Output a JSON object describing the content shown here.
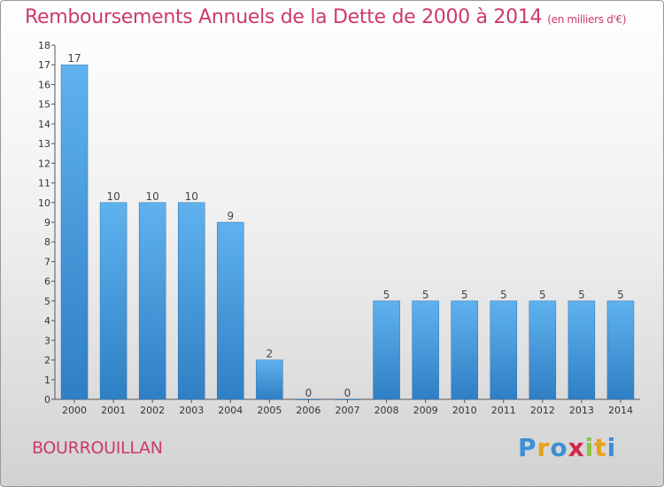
{
  "title": "Remboursements Annuels de la Dette de 2000 à 2014",
  "unit": "(en milliers d'€)",
  "commune": "BOURROUILLAN",
  "logo": {
    "letters": [
      "P",
      "r",
      "o",
      "x",
      "i",
      "t",
      "i"
    ],
    "colors": [
      "#3d8fd6",
      "#e8a21a",
      "#3d8fd6",
      "#d4264a",
      "#8cc43e",
      "#e8a21a",
      "#3d8fd6"
    ]
  },
  "chart_data": {
    "type": "bar",
    "categories": [
      "2000",
      "2001",
      "2002",
      "2003",
      "2004",
      "2005",
      "2006",
      "2007",
      "2008",
      "2009",
      "2010",
      "2011",
      "2012",
      "2013",
      "2014"
    ],
    "values": [
      17,
      10,
      10,
      10,
      9,
      2,
      0,
      0,
      5,
      5,
      5,
      5,
      5,
      5,
      5
    ],
    "data_labels": [
      "17",
      "10",
      "10",
      "10",
      "9",
      "2",
      "0",
      "0",
      "5",
      "5",
      "5",
      "5",
      "5",
      "5",
      "5"
    ],
    "yticks": [
      "0",
      "1",
      "2",
      "3",
      "4",
      "5",
      "6",
      "7",
      "8",
      "9",
      "10",
      "11",
      "12",
      "13",
      "14",
      "15",
      "16",
      "17",
      "18"
    ],
    "ylim": [
      0,
      18
    ],
    "bar_color": "#4a9fe0",
    "grid": false
  }
}
